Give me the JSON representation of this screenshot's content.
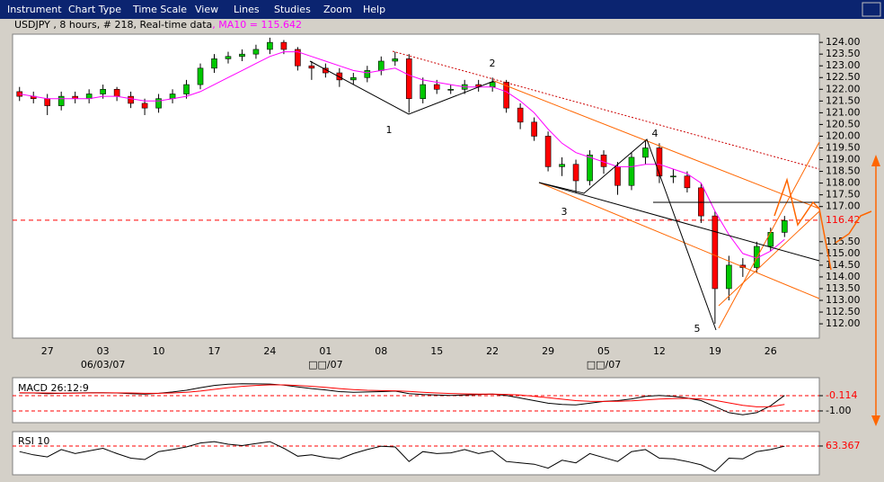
{
  "menu": [
    "Instrument",
    "Chart Type",
    "Time Scale",
    "View",
    "Lines",
    "Studies",
    "Zoom",
    "Help"
  ],
  "wave_labels": [
    "1",
    "2",
    "3",
    "4",
    "5"
  ],
  "chart_data": [
    {
      "type": "candlestick",
      "title": "USDJPY , 8 hours, # 218, Real-time data",
      "ma_label": ", MA10 = 115.642",
      "categories": [
        null,
        null,
        "27",
        null,
        null,
        null,
        "03",
        null,
        null,
        null,
        "10",
        null,
        null,
        null,
        "17",
        null,
        null,
        null,
        "24",
        null,
        null,
        null,
        "01",
        null,
        null,
        null,
        "08",
        null,
        null,
        null,
        "15",
        null,
        null,
        null,
        "22",
        null,
        null,
        null,
        "29",
        null,
        null,
        null,
        "05",
        null,
        null,
        null,
        "12",
        null,
        null,
        null,
        "19",
        null,
        null,
        null,
        "26",
        null,
        null,
        null
      ],
      "category_sublabels": [
        null,
        null,
        null,
        null,
        null,
        null,
        "06/03/07",
        null,
        null,
        null,
        null,
        null,
        null,
        null,
        null,
        null,
        null,
        null,
        null,
        null,
        null,
        null,
        "□□/07",
        null,
        null,
        null,
        null,
        null,
        null,
        null,
        null,
        null,
        null,
        null,
        null,
        null,
        null,
        null,
        null,
        null,
        null,
        null,
        "□□/07",
        null,
        null,
        null,
        null,
        null,
        null,
        null,
        null,
        null,
        null,
        null,
        null,
        null,
        null,
        null
      ],
      "open": [
        121.9,
        121.7,
        121.6,
        121.3,
        121.7,
        121.6,
        121.8,
        122.0,
        121.7,
        121.4,
        121.2,
        121.6,
        121.8,
        122.2,
        122.9,
        123.3,
        123.4,
        123.5,
        123.7,
        124.0,
        123.7,
        123.0,
        122.9,
        122.7,
        122.4,
        122.5,
        122.8,
        123.2,
        123.3,
        121.6,
        122.2,
        122.0,
        122.0,
        122.2,
        122.1,
        122.3,
        121.2,
        120.6,
        120.0,
        118.7,
        118.8,
        118.1,
        119.2,
        118.7,
        117.9,
        119.1,
        119.5,
        118.3,
        118.3,
        117.8,
        116.6,
        113.5,
        114.5,
        114.4,
        115.3,
        115.9,
        null,
        null
      ],
      "high": [
        122.1,
        121.9,
        121.8,
        121.9,
        121.9,
        122.0,
        122.2,
        122.1,
        121.9,
        121.6,
        121.8,
        122.0,
        122.4,
        123.1,
        123.5,
        123.6,
        123.7,
        123.9,
        124.2,
        124.1,
        123.8,
        123.2,
        123.1,
        122.9,
        122.7,
        123.0,
        123.4,
        123.6,
        123.5,
        122.5,
        122.4,
        122.2,
        122.4,
        122.4,
        122.5,
        122.4,
        121.4,
        120.8,
        120.2,
        119.1,
        119.0,
        119.4,
        119.4,
        118.9,
        119.3,
        119.8,
        119.7,
        118.6,
        118.5,
        118.0,
        116.8,
        114.9,
        114.8,
        115.5,
        116.1,
        116.6,
        null,
        null
      ],
      "low": [
        121.5,
        121.4,
        120.9,
        121.1,
        121.4,
        121.4,
        121.6,
        121.5,
        121.2,
        120.9,
        121.0,
        121.4,
        121.6,
        122.0,
        122.7,
        123.1,
        123.2,
        123.3,
        123.5,
        123.5,
        122.8,
        122.4,
        122.5,
        122.1,
        122.2,
        122.3,
        122.6,
        123.0,
        121.0,
        121.4,
        121.8,
        121.8,
        121.8,
        121.9,
        121.9,
        121.0,
        120.3,
        119.8,
        118.5,
        118.3,
        117.6,
        117.9,
        118.4,
        117.5,
        117.7,
        118.8,
        118.0,
        118.0,
        117.6,
        116.3,
        112.0,
        113.0,
        114.0,
        114.2,
        115.1,
        115.7,
        null,
        null
      ],
      "close": [
        121.7,
        121.6,
        121.3,
        121.7,
        121.6,
        121.8,
        122.0,
        121.7,
        121.4,
        121.2,
        121.6,
        121.8,
        122.2,
        122.9,
        123.3,
        123.4,
        123.5,
        123.7,
        124.0,
        123.7,
        123.0,
        122.9,
        122.7,
        122.4,
        122.5,
        122.8,
        123.2,
        123.3,
        121.6,
        122.2,
        122.0,
        122.0,
        122.2,
        122.1,
        122.3,
        121.2,
        120.6,
        120.0,
        118.7,
        118.8,
        118.1,
        119.2,
        118.7,
        117.9,
        119.1,
        119.5,
        118.3,
        118.3,
        117.8,
        116.6,
        113.5,
        114.5,
        114.4,
        115.3,
        115.9,
        116.4,
        null,
        null
      ],
      "ma_values": [
        121.8,
        121.7,
        121.6,
        121.6,
        121.6,
        121.6,
        121.7,
        121.7,
        121.6,
        121.5,
        121.5,
        121.6,
        121.7,
        121.9,
        122.2,
        122.5,
        122.8,
        123.1,
        123.4,
        123.6,
        123.6,
        123.4,
        123.2,
        123.0,
        122.8,
        122.7,
        122.8,
        122.9,
        122.6,
        122.4,
        122.3,
        122.2,
        122.1,
        122.1,
        122.1,
        121.9,
        121.5,
        121.0,
        120.3,
        119.7,
        119.3,
        119.1,
        118.9,
        118.7,
        118.7,
        118.8,
        118.8,
        118.6,
        118.4,
        118.0,
        116.8,
        115.8,
        115.0,
        114.8,
        115.1,
        115.6,
        null,
        null
      ],
      "up_color": "#00c800",
      "down_color": "#ff0000",
      "ma_color": "#ff00ff",
      "last_price": 116.42,
      "last_price_color": "#ff0000",
      "ylim": [
        111.39,
        124.35
      ],
      "yticks": [
        {
          "value": 112,
          "label": "112.00"
        },
        {
          "value": 112.5,
          "label": "112.50"
        },
        {
          "value": 113,
          "label": "113.00"
        },
        {
          "value": 113.5,
          "label": "113.50"
        },
        {
          "value": 114,
          "label": "114.00"
        },
        {
          "value": 114.5,
          "label": "114.50"
        },
        {
          "value": 115,
          "label": "115.00"
        },
        {
          "value": 115.5,
          "label": "115.50"
        },
        {
          "value": 117,
          "label": "117.00"
        },
        {
          "value": 117.5,
          "label": "117.50"
        },
        {
          "value": 118,
          "label": "118.00"
        },
        {
          "value": 118.5,
          "label": "118.50"
        },
        {
          "value": 119,
          "label": "119.00"
        },
        {
          "value": 119.5,
          "label": "119.50"
        },
        {
          "value": 120,
          "label": "120.00"
        },
        {
          "value": 120.5,
          "label": "120.50"
        },
        {
          "value": 121,
          "label": "121.00"
        },
        {
          "value": 121.5,
          "label": "121.50"
        },
        {
          "value": 122,
          "label": "122.00"
        },
        {
          "value": 122.5,
          "label": "122.50"
        },
        {
          "value": 123,
          "label": "123.00"
        },
        {
          "value": 123.5,
          "label": "123.50"
        },
        {
          "value": 124,
          "label": "124.00"
        }
      ]
    },
    {
      "type": "line",
      "title": "MACD 26:12:9",
      "series": [
        {
          "color": "#000000",
          "values": [
            0.04,
            0.04,
            0.0,
            0.02,
            0.04,
            0.06,
            0.06,
            0.04,
            0.0,
            -0.02,
            0.02,
            0.1,
            0.2,
            0.35,
            0.48,
            0.55,
            0.58,
            0.57,
            0.56,
            0.5,
            0.4,
            0.3,
            0.22,
            0.12,
            0.08,
            0.1,
            0.12,
            0.15,
            0.0,
            -0.05,
            -0.08,
            -0.1,
            -0.08,
            -0.05,
            -0.02,
            -0.1,
            -0.25,
            -0.4,
            -0.55,
            -0.62,
            -0.65,
            -0.55,
            -0.45,
            -0.4,
            -0.3,
            -0.15,
            -0.1,
            -0.15,
            -0.25,
            -0.4,
            -0.75,
            -1.1,
            -1.22,
            -1.1,
            -0.7,
            -0.1,
            null,
            null
          ]
        },
        {
          "color": "#ff0000",
          "values": [
            0.06,
            0.05,
            0.04,
            0.03,
            0.03,
            0.04,
            0.05,
            0.05,
            0.04,
            0.02,
            0.02,
            0.04,
            0.08,
            0.15,
            0.25,
            0.35,
            0.43,
            0.48,
            0.51,
            0.51,
            0.48,
            0.43,
            0.37,
            0.3,
            0.24,
            0.2,
            0.18,
            0.17,
            0.13,
            0.08,
            0.04,
            0.01,
            -0.01,
            -0.02,
            -0.02,
            -0.04,
            -0.08,
            -0.15,
            -0.23,
            -0.32,
            -0.4,
            -0.44,
            -0.45,
            -0.44,
            -0.41,
            -0.36,
            -0.31,
            -0.28,
            -0.27,
            -0.3,
            -0.39,
            -0.53,
            -0.67,
            -0.76,
            -0.75,
            -0.62,
            null,
            null
          ]
        }
      ],
      "ylim": [
        -1.68,
        0.93
      ],
      "yticks": [
        -0.114,
        {
          "value": -1,
          "label": "-1.00"
        }
      ]
    },
    {
      "type": "line",
      "title": "RSI 10",
      "series": [
        {
          "color": "#000000",
          "values": [
            55,
            50,
            47,
            58,
            52,
            56,
            60,
            52,
            45,
            43,
            55,
            58,
            62,
            68,
            70,
            66,
            64,
            67,
            70,
            60,
            48,
            50,
            46,
            44,
            52,
            58,
            63,
            62,
            40,
            55,
            52,
            53,
            58,
            52,
            56,
            40,
            38,
            36,
            30,
            42,
            38,
            52,
            46,
            40,
            55,
            58,
            45,
            44,
            40,
            35,
            25,
            45,
            44,
            55,
            58,
            63,
            null,
            null
          ]
        }
      ],
      "ylim": [
        20,
        85
      ],
      "yticks": [
        63.367
      ]
    }
  ]
}
